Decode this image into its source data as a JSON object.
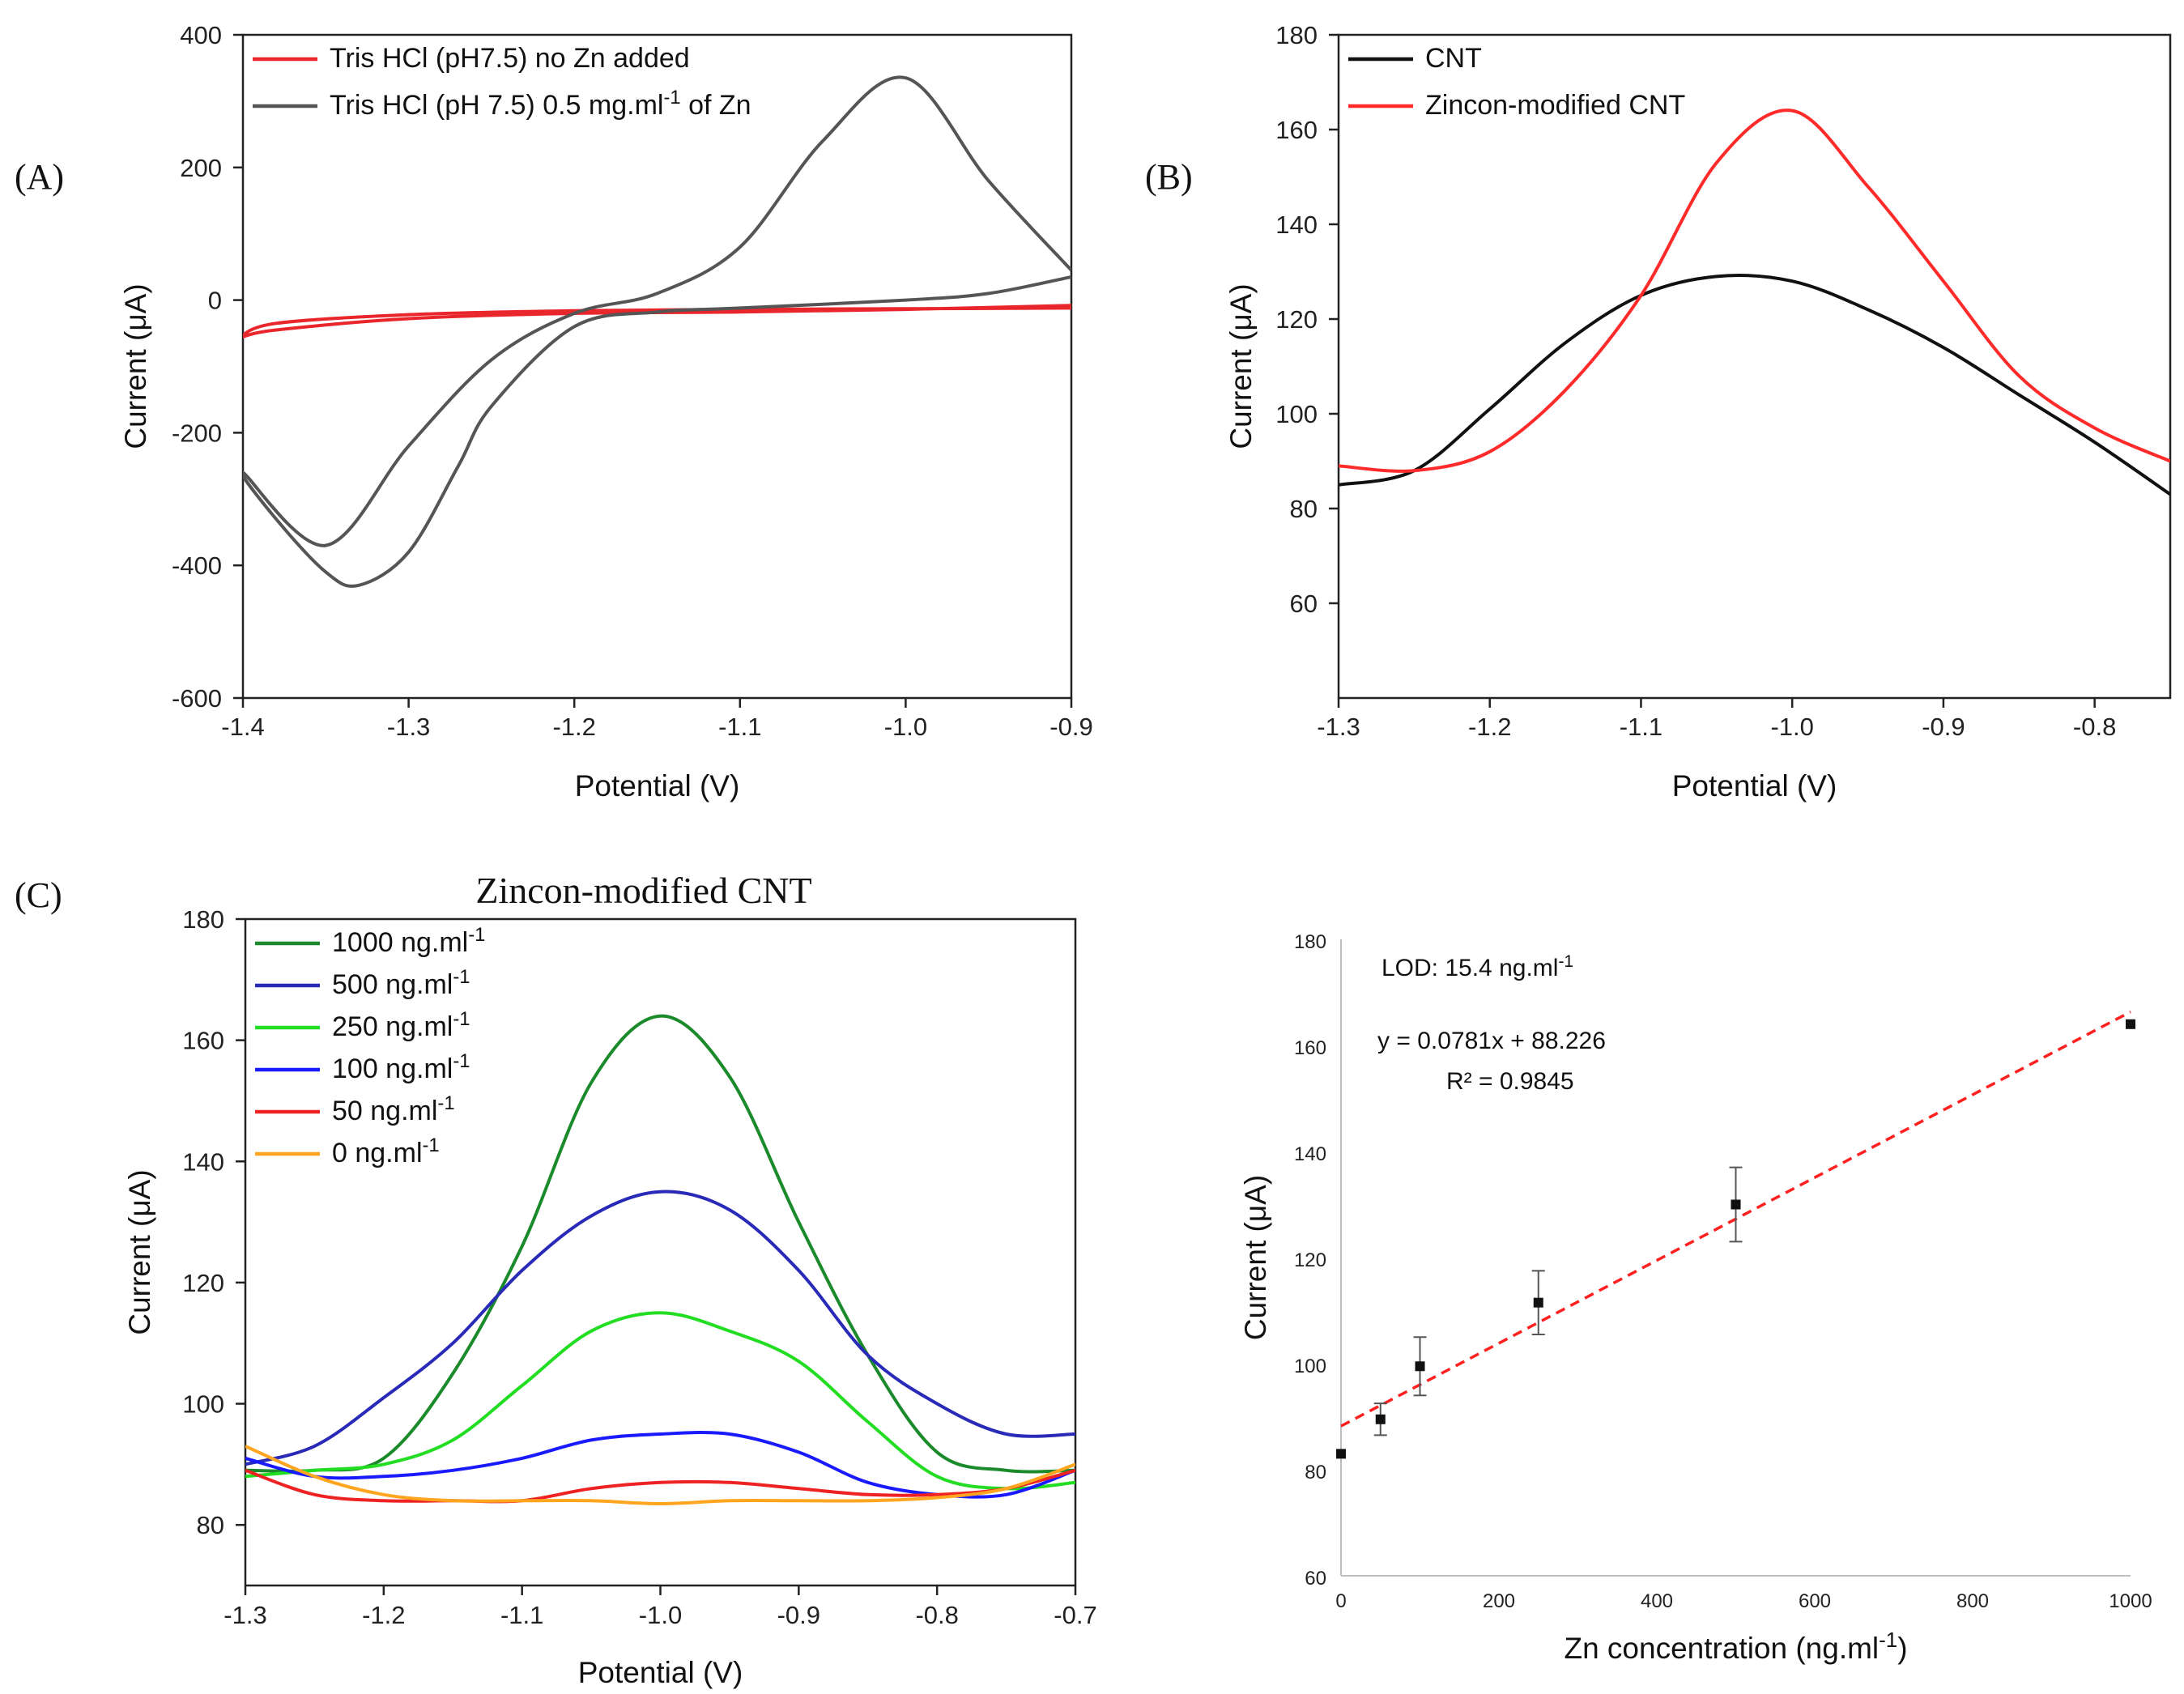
{
  "chart_data": [
    {
      "id": "A",
      "panel_label": "(A)",
      "type": "line",
      "xlabel": "Potential (V)",
      "ylabel": "Current (μA)",
      "xlim": [
        -1.4,
        -0.9
      ],
      "ylim": [
        -600,
        400
      ],
      "xticks": [
        -1.4,
        -1.3,
        -1.2,
        -1.1,
        -1.0,
        -0.9
      ],
      "xtick_labels": [
        "-1.4",
        "-1.3",
        "-1.2",
        "-1.1",
        "-1.0",
        "-0.9"
      ],
      "yticks": [
        -600,
        -400,
        -200,
        0,
        200,
        400
      ],
      "ytick_labels": [
        "-600",
        "-400",
        "-200",
        "0",
        "200",
        "400"
      ],
      "legend_position": "top-left",
      "series": [
        {
          "name": "Tris HCl (pH7.5) no Zn added",
          "legend_parts": [
            "Tris HCl (pH7.5) no Zn added"
          ],
          "color": "#e8262b",
          "x": [
            -0.9,
            -1.0,
            -1.1,
            -1.2,
            -1.3,
            -1.38,
            -1.4,
            -1.38,
            -1.3,
            -1.2,
            -1.1,
            -1.0,
            -0.9
          ],
          "y": [
            -12,
            -13,
            -14,
            -16,
            -22,
            -35,
            -55,
            -45,
            -28,
            -20,
            -18,
            -14,
            -8
          ]
        },
        {
          "name": "Tris HCl (pH 7.5) 0.5 mg.ml-1 of Zn",
          "legend_parts": [
            "Tris HCl (pH 7.5) 0.5 mg.ml",
            "-1",
            " of Zn"
          ],
          "color": "#555555",
          "x": [
            -0.9,
            -0.95,
            -1.0,
            -1.05,
            -1.1,
            -1.15,
            -1.2,
            -1.25,
            -1.3,
            -1.35,
            -1.4,
            -1.38,
            -1.35,
            -1.33,
            -1.3,
            -1.27,
            -1.25,
            -1.2,
            -1.15,
            -1.1,
            -1.0,
            -0.95,
            -0.9
          ],
          "y": [
            45,
            180,
            335,
            240,
            80,
            10,
            -20,
            -90,
            -220,
            -370,
            -260,
            -330,
            -410,
            -430,
            -380,
            -250,
            -160,
            -40,
            -18,
            -12,
            0,
            10,
            35
          ]
        }
      ]
    },
    {
      "id": "B",
      "panel_label": "(B)",
      "type": "line",
      "xlabel": "Potential (V)",
      "ylabel": "Current (μA)",
      "xlim": [
        -1.3,
        -0.75
      ],
      "ylim": [
        40,
        180
      ],
      "xticks": [
        -1.3,
        -1.2,
        -1.1,
        -1.0,
        -0.9,
        -0.8
      ],
      "xtick_labels": [
        "-1.3",
        "-1.2",
        "-1.1",
        "-1.0",
        "-0.9",
        "-0.8"
      ],
      "yticks": [
        60,
        80,
        100,
        120,
        140,
        160,
        180
      ],
      "ytick_labels": [
        "60",
        "80",
        "100",
        "120",
        "140",
        "160",
        "180"
      ],
      "legend_position": "top-left",
      "series": [
        {
          "name": "CNT",
          "color": "#111111",
          "x": [
            -1.3,
            -1.25,
            -1.2,
            -1.15,
            -1.1,
            -1.05,
            -1.0,
            -0.95,
            -0.9,
            -0.85,
            -0.8,
            -0.75
          ],
          "y": [
            85,
            88,
            101,
            115,
            125,
            129,
            128,
            122,
            114,
            104,
            94,
            83
          ]
        },
        {
          "name": "Zincon-modified CNT",
          "color": "#ff2a2a",
          "x": [
            -1.3,
            -1.25,
            -1.2,
            -1.15,
            -1.1,
            -1.05,
            -1.0,
            -0.95,
            -0.9,
            -0.85,
            -0.8,
            -0.75
          ],
          "y": [
            89,
            88,
            92,
            105,
            125,
            153,
            164,
            148,
            128,
            108,
            97,
            90
          ]
        }
      ]
    },
    {
      "id": "C",
      "panel_label": "(C)",
      "title": "Zincon-modified CNT",
      "type": "line",
      "xlabel": "Potential (V)",
      "ylabel": "Current (μA)",
      "xlim": [
        -1.3,
        -0.7
      ],
      "ylim": [
        70,
        180
      ],
      "xticks": [
        -1.3,
        -1.2,
        -1.1,
        -1.0,
        -0.9,
        -0.8,
        -0.7
      ],
      "xtick_labels": [
        "-1.3",
        "-1.2",
        "-1.1",
        "-1.0",
        "-0.9",
        "-0.8",
        "-0.7"
      ],
      "yticks": [
        80,
        100,
        120,
        140,
        160,
        180
      ],
      "ytick_labels": [
        "80",
        "100",
        "120",
        "140",
        "160",
        "180"
      ],
      "legend_position": "top-left",
      "series": [
        {
          "name": "1000 ng.ml-1",
          "legend_parts": [
            "1000 ng.ml",
            "-1"
          ],
          "color": "#1a8a2a",
          "x": [
            -1.3,
            -1.25,
            -1.2,
            -1.15,
            -1.1,
            -1.05,
            -1.0,
            -0.95,
            -0.9,
            -0.85,
            -0.8,
            -0.75,
            -0.7
          ],
          "y": [
            89,
            89,
            91,
            105,
            126,
            153,
            164,
            154,
            130,
            108,
            92,
            89,
            89
          ]
        },
        {
          "name": "500 ng.ml-1",
          "legend_parts": [
            "500 ng.ml",
            "-1"
          ],
          "color": "#2a2ab8",
          "x": [
            -1.3,
            -1.25,
            -1.2,
            -1.15,
            -1.1,
            -1.05,
            -1.0,
            -0.95,
            -0.9,
            -0.85,
            -0.8,
            -0.75,
            -0.7
          ],
          "y": [
            90,
            93,
            101,
            110,
            122,
            131,
            135,
            132,
            122,
            108,
            100,
            95,
            95
          ]
        },
        {
          "name": "250 ng.ml-1",
          "legend_parts": [
            "250 ng.ml",
            "-1"
          ],
          "color": "#22dd22",
          "x": [
            -1.3,
            -1.25,
            -1.2,
            -1.15,
            -1.1,
            -1.05,
            -1.0,
            -0.95,
            -0.9,
            -0.85,
            -0.8,
            -0.75,
            -0.7
          ],
          "y": [
            88,
            89,
            90,
            94,
            103,
            112,
            115,
            112,
            107,
            97,
            88,
            86,
            87
          ]
        },
        {
          "name": "100 ng.ml-1",
          "legend_parts": [
            "100 ng.ml",
            "-1"
          ],
          "color": "#1a1aff",
          "x": [
            -1.3,
            -1.25,
            -1.2,
            -1.15,
            -1.1,
            -1.05,
            -1.0,
            -0.95,
            -0.9,
            -0.85,
            -0.8,
            -0.75,
            -0.7
          ],
          "y": [
            91,
            88,
            88,
            89,
            91,
            94,
            95,
            95,
            92,
            87,
            85,
            85,
            89
          ]
        },
        {
          "name": "50 ng.ml-1",
          "legend_parts": [
            "50 ng.ml",
            "-1"
          ],
          "color": "#ee2222",
          "x": [
            -1.3,
            -1.25,
            -1.2,
            -1.15,
            -1.1,
            -1.05,
            -1.0,
            -0.95,
            -0.9,
            -0.85,
            -0.8,
            -0.75,
            -0.7
          ],
          "y": [
            89,
            85,
            84,
            84,
            84,
            86,
            87,
            87,
            86,
            85,
            85,
            86,
            89
          ]
        },
        {
          "name": "0 ng.ml-1",
          "legend_parts": [
            "0 ng.ml",
            "-1"
          ],
          "color": "#ffa51f",
          "x": [
            -1.3,
            -1.25,
            -1.2,
            -1.15,
            -1.1,
            -1.05,
            -1.0,
            -0.95,
            -0.9,
            -0.85,
            -0.8,
            -0.75,
            -0.7
          ],
          "y": [
            93,
            88,
            85,
            84,
            84,
            84,
            83.5,
            84,
            84,
            84,
            84.5,
            86,
            90
          ]
        }
      ]
    },
    {
      "id": "D",
      "type": "scatter",
      "xlabel": "Zn concentration (ng.ml-1)",
      "xlabel_parts": [
        "Zn concentration (ng.ml",
        "-1",
        ")"
      ],
      "ylabel": "Current (μA)",
      "xlim": [
        0,
        1000
      ],
      "ylim": [
        60,
        180
      ],
      "xticks": [
        0,
        200,
        400,
        600,
        800,
        1000
      ],
      "xtick_labels": [
        "0",
        "200",
        "400",
        "600",
        "800",
        "1000"
      ],
      "yticks": [
        60,
        80,
        100,
        120,
        140,
        160,
        180
      ],
      "ytick_labels": [
        "60",
        "80",
        "100",
        "120",
        "140",
        "160",
        "180"
      ],
      "points": {
        "x": [
          0,
          50,
          100,
          250,
          500,
          1000
        ],
        "y": [
          83,
          89.5,
          99.5,
          111.5,
          130,
          164
        ],
        "err": [
          0,
          3,
          5.5,
          6,
          7,
          0
        ]
      },
      "trendline": {
        "slope": 0.0781,
        "intercept": 88.226,
        "color": "#ff2020"
      },
      "annotations": {
        "lod_parts": [
          "LOD: 15.4 ng.ml",
          "-1"
        ],
        "equation": "y = 0.0781x + 88.226",
        "r2": "R² = 0.9845"
      }
    }
  ]
}
